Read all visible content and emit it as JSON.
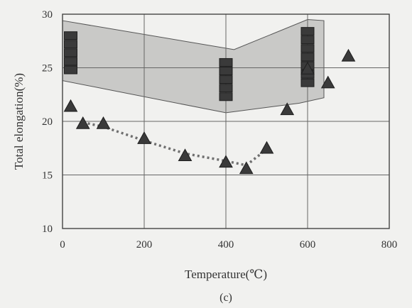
{
  "chart_data": {
    "type": "scatter",
    "caption": "(c)",
    "xlabel": "Temperature(℃)",
    "ylabel": "Total elongation(%)",
    "xlim": [
      0,
      800
    ],
    "ylim": [
      10,
      30
    ],
    "xticks": [
      "0",
      "200",
      "400",
      "600",
      "800"
    ],
    "yticks": [
      "10",
      "15",
      "20",
      "25",
      "30"
    ],
    "grid": true,
    "legend": "none",
    "band": {
      "upper": [
        {
          "x": 0,
          "y": 29.4
        },
        {
          "x": 420,
          "y": 26.7
        },
        {
          "x": 600,
          "y": 29.5
        },
        {
          "x": 640,
          "y": 29.4
        }
      ],
      "lower": [
        {
          "x": 640,
          "y": 22.2
        },
        {
          "x": 580,
          "y": 21.7
        },
        {
          "x": 400,
          "y": 20.8
        },
        {
          "x": 0,
          "y": 23.8
        }
      ],
      "color": "#c9c9c7"
    },
    "square_series": [
      {
        "x": 20,
        "y": [
          24.8,
          25.6,
          26.4,
          27.2,
          28.0
        ]
      },
      {
        "x": 400,
        "y": [
          22.3,
          23.1,
          23.9,
          24.7,
          25.5
        ]
      },
      {
        "x": 600,
        "y": [
          23.6,
          24.4,
          25.2,
          26.0,
          26.8,
          27.6,
          28.4
        ]
      }
    ],
    "triangle_series": {
      "x": [
        20,
        50,
        100,
        200,
        300,
        400,
        450,
        500,
        550,
        600,
        650,
        700
      ],
      "y": [
        21.4,
        19.8,
        19.8,
        18.4,
        16.8,
        16.2,
        15.6,
        17.5,
        21.1,
        24.9,
        23.6,
        26.1
      ]
    },
    "dotted_trend": {
      "x": [
        50,
        100,
        200,
        300,
        400,
        450,
        500
      ],
      "y": [
        19.9,
        19.5,
        18.2,
        17.0,
        16.3,
        15.9,
        17.4
      ]
    },
    "colors": {
      "marker": "#3a3a3a",
      "trend": "#6f6f6f",
      "grid": "#666666"
    }
  }
}
